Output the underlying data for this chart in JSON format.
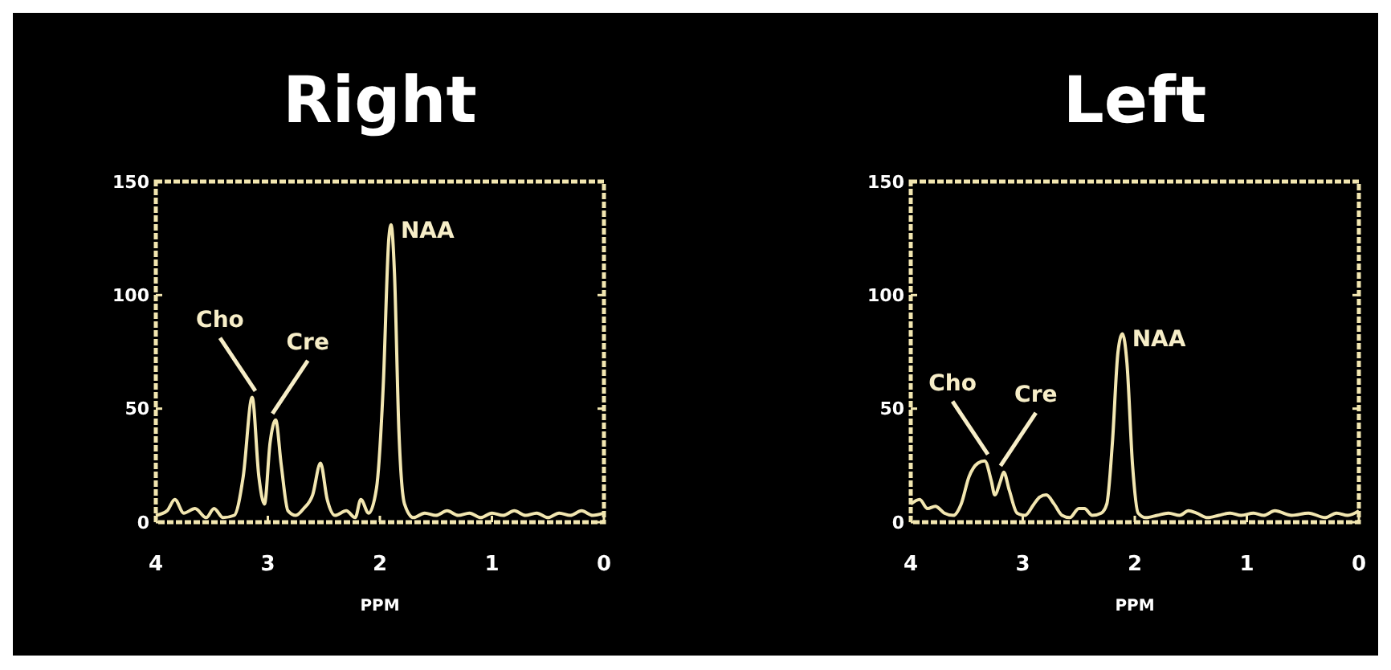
{
  "chart_data": [
    {
      "type": "line",
      "title": "Right",
      "xlabel": "PPM",
      "color": "#f2e6b0",
      "xlim": [
        4,
        0
      ],
      "ylim": [
        0,
        150
      ],
      "xticks": [
        4,
        3,
        2,
        1,
        0
      ],
      "yticks": [
        0,
        50,
        100,
        150
      ],
      "x": [
        4.0,
        3.9,
        3.83,
        3.75,
        3.65,
        3.55,
        3.48,
        3.4,
        3.3,
        3.22,
        3.14,
        3.08,
        3.03,
        2.98,
        2.93,
        2.88,
        2.82,
        2.75,
        2.68,
        2.6,
        2.53,
        2.47,
        2.4,
        2.3,
        2.22,
        2.17,
        2.1,
        2.03,
        1.97,
        1.92,
        1.9,
        1.87,
        1.83,
        1.78,
        1.7,
        1.6,
        1.5,
        1.4,
        1.3,
        1.2,
        1.1,
        1.0,
        0.9,
        0.8,
        0.7,
        0.6,
        0.5,
        0.4,
        0.3,
        0.2,
        0.1,
        0.0
      ],
      "values": [
        3,
        5,
        10,
        4,
        6,
        2,
        6,
        2,
        3,
        20,
        55,
        20,
        8,
        35,
        45,
        25,
        5,
        3,
        6,
        12,
        26,
        10,
        3,
        5,
        2,
        10,
        4,
        15,
        60,
        125,
        131,
        110,
        40,
        8,
        2,
        4,
        3,
        5,
        3,
        4,
        2,
        4,
        3,
        5,
        3,
        4,
        2,
        4,
        3,
        5,
        3,
        4
      ],
      "annotations": [
        {
          "text": "Cho",
          "x": 3.14,
          "y": 55
        },
        {
          "text": "Cre",
          "x": 2.93,
          "y": 45
        },
        {
          "text": "NAA",
          "x": 1.9,
          "y": 131
        }
      ]
    },
    {
      "type": "line",
      "title": "Left",
      "xlabel": "PPM",
      "color": "#f2e6b0",
      "xlim": [
        4,
        0
      ],
      "ylim": [
        0,
        150
      ],
      "xticks": [
        4,
        3,
        2,
        1,
        0
      ],
      "yticks": [
        0,
        50,
        100,
        150
      ],
      "x": [
        4.0,
        3.92,
        3.85,
        3.78,
        3.7,
        3.62,
        3.55,
        3.48,
        3.4,
        3.34,
        3.28,
        3.25,
        3.2,
        3.17,
        3.12,
        3.05,
        2.98,
        2.9,
        2.85,
        2.79,
        2.72,
        2.65,
        2.58,
        2.5,
        2.45,
        2.38,
        2.3,
        2.25,
        2.2,
        2.15,
        2.11,
        2.07,
        2.02,
        1.97,
        1.9,
        1.8,
        1.7,
        1.6,
        1.52,
        1.45,
        1.35,
        1.25,
        1.15,
        1.05,
        0.94,
        0.85,
        0.75,
        0.6,
        0.45,
        0.3,
        0.2,
        0.1,
        0.0
      ],
      "values": [
        8,
        10,
        6,
        7,
        4,
        3,
        8,
        20,
        26,
        27,
        18,
        12,
        18,
        22,
        14,
        4,
        3,
        8,
        11,
        12,
        8,
        3,
        2,
        6,
        6,
        3,
        4,
        8,
        35,
        75,
        83,
        70,
        25,
        4,
        2,
        3,
        4,
        3,
        5,
        4,
        2,
        3,
        4,
        3,
        4,
        3,
        5,
        3,
        4,
        2,
        4,
        3,
        5
      ],
      "annotations": [
        {
          "text": "Cho",
          "x": 3.34,
          "y": 27
        },
        {
          "text": "Cre",
          "x": 3.17,
          "y": 22
        },
        {
          "text": "NAA",
          "x": 2.11,
          "y": 83
        }
      ]
    }
  ]
}
